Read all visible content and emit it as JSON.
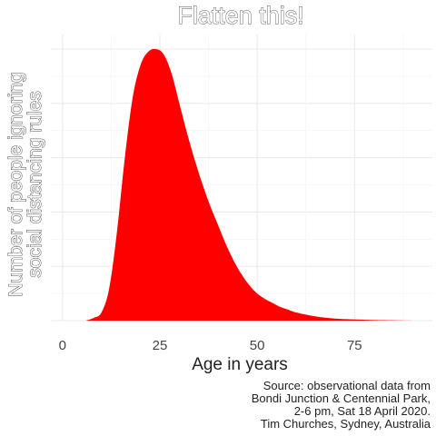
{
  "chart_data": {
    "type": "area",
    "title": "Flatten this!",
    "xlabel": "Age in years",
    "ylabel_lines": [
      "Number of people ignoring",
      "social distancing rules"
    ],
    "xlim": [
      -3,
      95
    ],
    "x_ticks": [
      0,
      25,
      50,
      75
    ],
    "x_tick_labels": [
      "0",
      "25",
      "50",
      "75"
    ],
    "y_ticks_labelled": false,
    "grid": true,
    "fill_color": "#ff0000",
    "series": [
      {
        "x": [
          6,
          8,
          10,
          12,
          14,
          16,
          18,
          20,
          22,
          24,
          26,
          28,
          30,
          32,
          34,
          36,
          38,
          40,
          42,
          44,
          46,
          48,
          50,
          52,
          54,
          56,
          58,
          60,
          64,
          68,
          72,
          76,
          80,
          86,
          92
        ],
        "y": [
          0.0,
          0.01,
          0.03,
          0.12,
          0.33,
          0.6,
          0.82,
          0.94,
          0.99,
          1.0,
          0.98,
          0.91,
          0.8,
          0.69,
          0.59,
          0.5,
          0.42,
          0.35,
          0.28,
          0.22,
          0.17,
          0.13,
          0.1,
          0.08,
          0.065,
          0.05,
          0.04,
          0.03,
          0.018,
          0.01,
          0.006,
          0.004,
          0.002,
          0.001,
          0.0
        ]
      }
    ],
    "caption_lines": [
      "Source: observational data from",
      "Bondi Junction & Centennial Park,",
      "2-6 pm, Sat 18 April 2020.",
      "Tim Churches, Sydney, Australia"
    ]
  }
}
